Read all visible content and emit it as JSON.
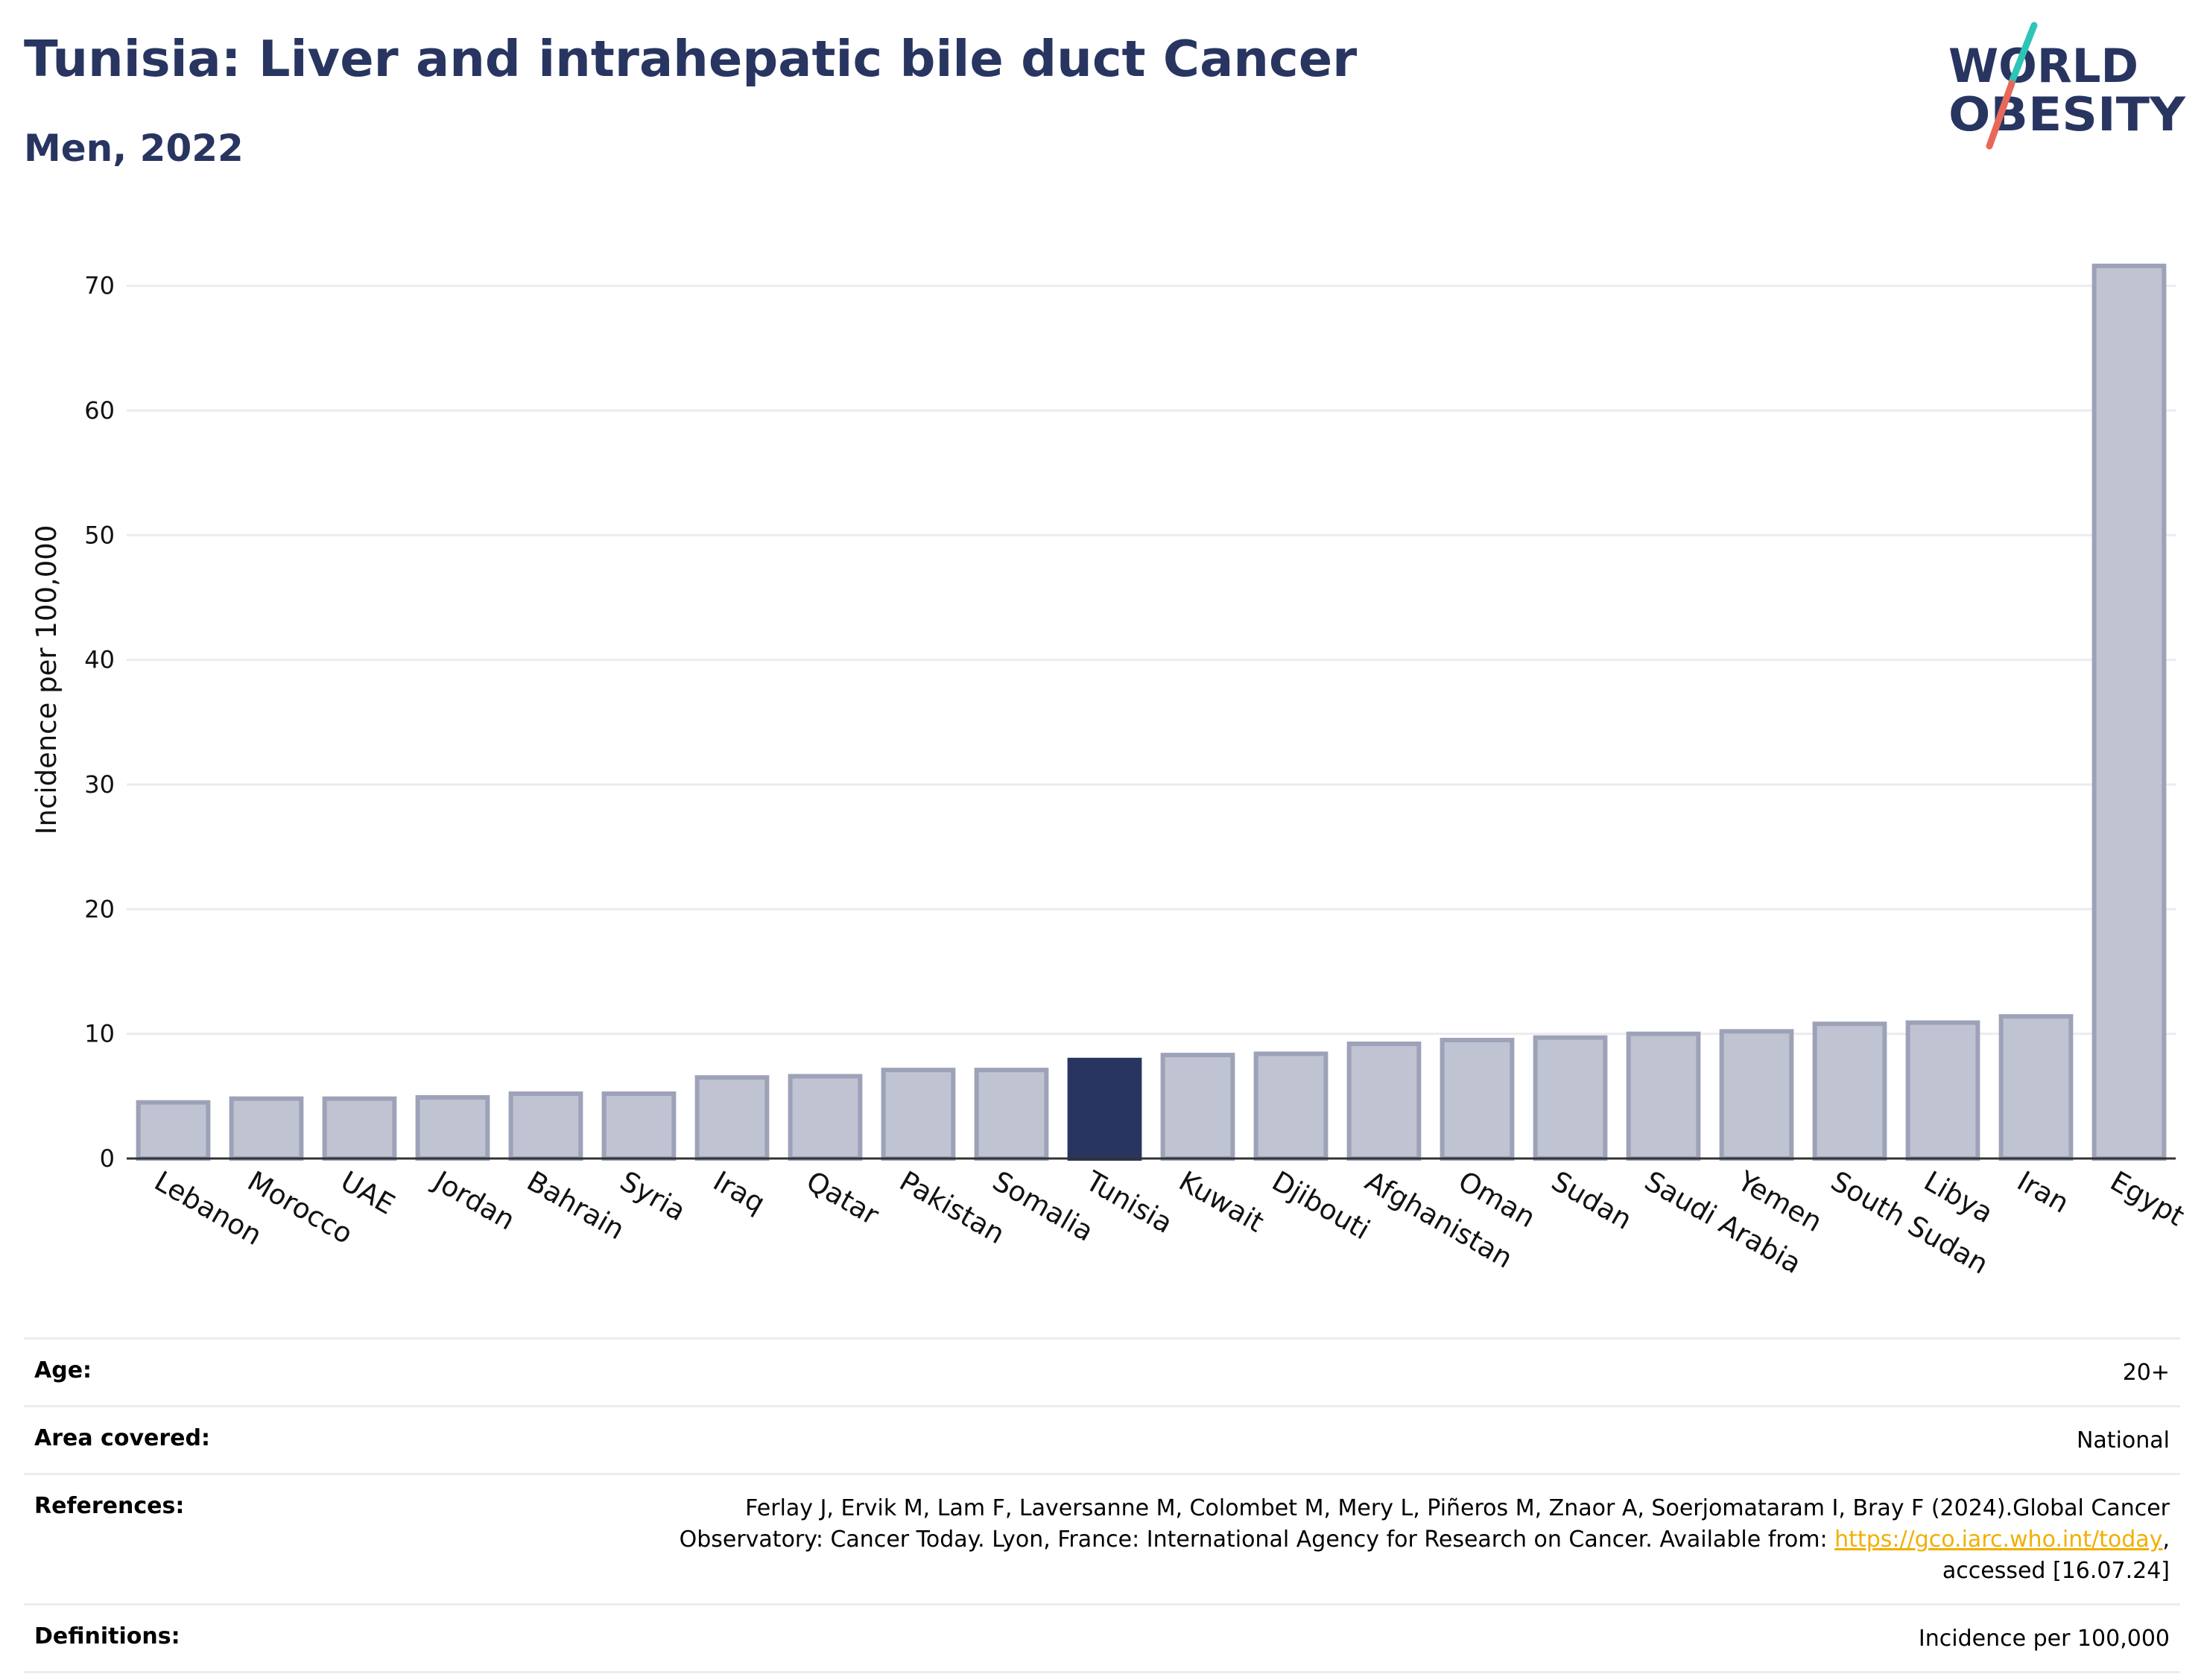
{
  "header": {
    "title": "Tunisia: Liver and intrahepatic bile duct Cancer",
    "subtitle": "Men, 2022"
  },
  "logo": {
    "line1": "WORLD",
    "line2": "OBESITY",
    "colors": {
      "text": "#283561",
      "slash_top": "#2ec4b6",
      "slash_bottom": "#e8685a"
    }
  },
  "colors": {
    "highlight": "#283561",
    "bar_fill": "#c0c3d1",
    "bar_stroke": "#9ea2b8",
    "grid": "#ebebf0"
  },
  "chart_data": {
    "type": "bar",
    "categories": [
      "Lebanon",
      "Morocco",
      "UAE",
      "Jordan",
      "Bahrain",
      "Syria",
      "Iraq",
      "Qatar",
      "Pakistan",
      "Somalia",
      "Tunisia",
      "Kuwait",
      "Djibouti",
      "Afghanistan",
      "Oman",
      "Sudan",
      "Saudi Arabia",
      "Yemen",
      "South Sudan",
      "Libya",
      "Iran",
      "Egypt"
    ],
    "values": [
      4.5,
      4.8,
      4.8,
      4.9,
      5.2,
      5.2,
      6.5,
      6.6,
      7.1,
      7.1,
      7.9,
      8.3,
      8.4,
      9.2,
      9.5,
      9.7,
      10.0,
      10.2,
      10.8,
      10.9,
      11.4,
      71.6
    ],
    "highlight": "Tunisia",
    "title": "",
    "xlabel": "",
    "ylabel": "Incidence per 100,000",
    "ylim": [
      0,
      75
    ],
    "yticks": [
      0,
      10,
      20,
      30,
      40,
      50,
      60,
      70
    ],
    "grid": true,
    "legend": "none"
  },
  "meta": {
    "age": {
      "label": "Age:",
      "value": "20+"
    },
    "area": {
      "label": "Area covered:",
      "value": "National"
    },
    "references": {
      "label": "References:",
      "line1": "Ferlay J, Ervik M, Lam F, Laversanne M, Colombet M, Mery L, Piñeros M, Znaor A, Soerjomataram I, Bray F (2024).Global Cancer",
      "line2_prefix": "Observatory: Cancer Today. Lyon, France: International Agency for Research on Cancer. Available from: ",
      "link": "https://gco.iarc.who.int/today",
      "line2_suffix": ",",
      "line3": "accessed [16.07.24]"
    },
    "definitions": {
      "label": "Definitions:",
      "value": "Incidence per 100,000"
    }
  }
}
